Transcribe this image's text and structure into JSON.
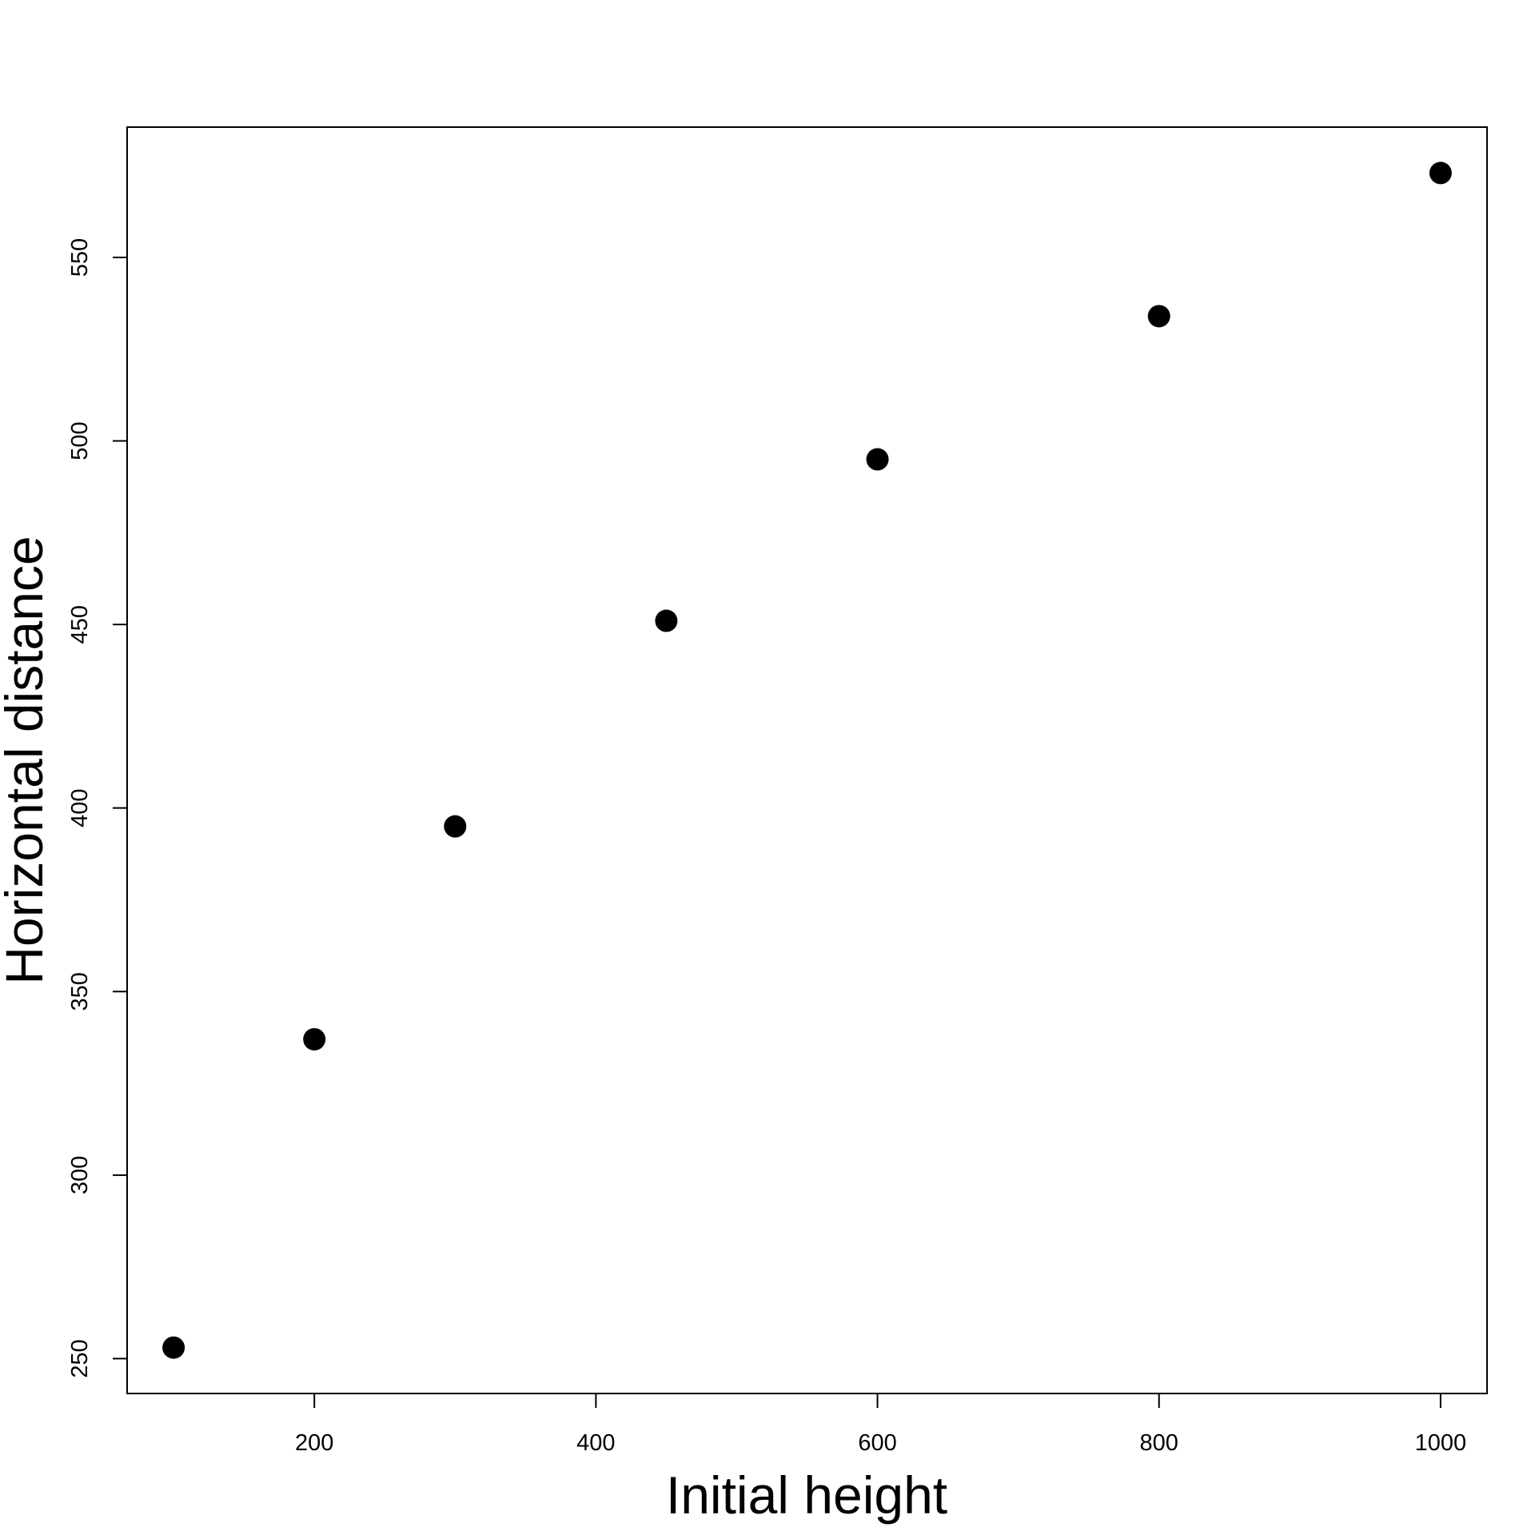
{
  "chart_data": {
    "type": "scatter",
    "title": "",
    "xlabel": "Initial height",
    "ylabel": "Horizontal distance",
    "xlim": [
      67,
      1033
    ],
    "ylim": [
      240.5,
      585.5
    ],
    "x_ticks": [
      200,
      400,
      600,
      800,
      1000
    ],
    "y_ticks": [
      250,
      300,
      350,
      400,
      450,
      500,
      550
    ],
    "grid": false,
    "legend": "none",
    "marker_color": "#000000",
    "series": [
      {
        "x": [
          100,
          200,
          300,
          450,
          600,
          800,
          1000
        ],
        "y": [
          253,
          337,
          395,
          451,
          495,
          534,
          573
        ]
      }
    ]
  }
}
